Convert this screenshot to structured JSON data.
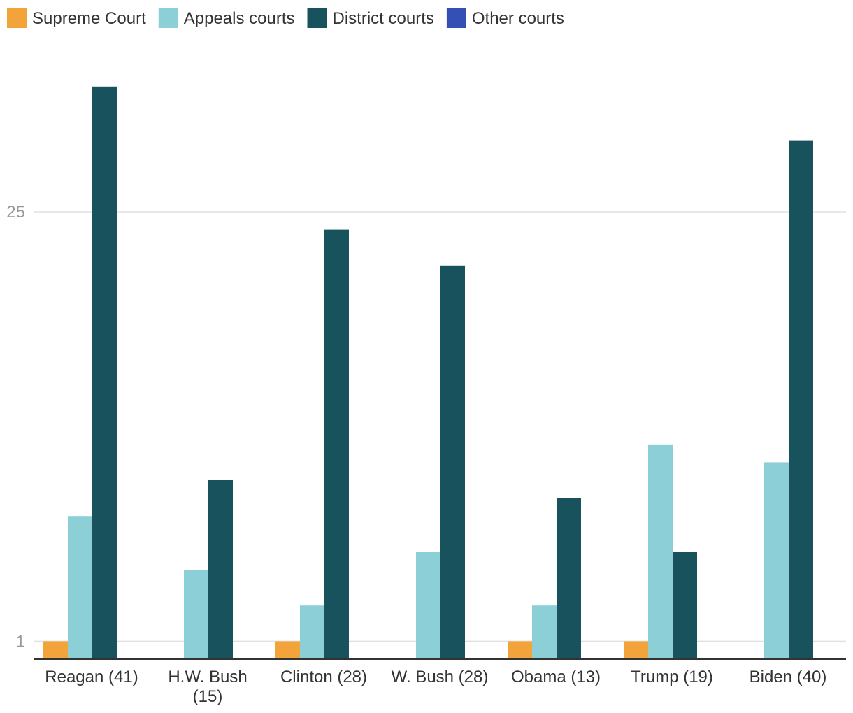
{
  "chart_data": {
    "type": "bar",
    "categories": [
      "Reagan (41)",
      "H.W. Bush (15)",
      "Clinton (28)",
      "W. Bush (28)",
      "Obama (13)",
      "Trump (19)",
      "Biden (40)"
    ],
    "category_lines": [
      [
        "Reagan (41)"
      ],
      [
        "H.W. Bush",
        "(15)"
      ],
      [
        "Clinton (28)"
      ],
      [
        "W. Bush (28)"
      ],
      [
        "Obama (13)"
      ],
      [
        "Trump (19)"
      ],
      [
        "Biden (40)"
      ]
    ],
    "series": [
      {
        "name": "Supreme Court",
        "color": "#f2a33a",
        "values": [
          1,
          0,
          1,
          0,
          1,
          1,
          0
        ]
      },
      {
        "name": "Appeals courts",
        "color": "#8ccfd7",
        "values": [
          8,
          5,
          3,
          6,
          3,
          12,
          11
        ]
      },
      {
        "name": "District courts",
        "color": "#17525d",
        "values": [
          32,
          10,
          24,
          22,
          9,
          6,
          29
        ]
      },
      {
        "name": "Other courts",
        "color": "#3550b5",
        "values": [
          0,
          0,
          0,
          0,
          0,
          0,
          0
        ]
      }
    ],
    "yticks": [
      1,
      25
    ],
    "ylim": [
      0,
      33
    ],
    "grid": true,
    "legend_position": "top-left",
    "title": "",
    "xlabel": "",
    "ylabel": ""
  }
}
